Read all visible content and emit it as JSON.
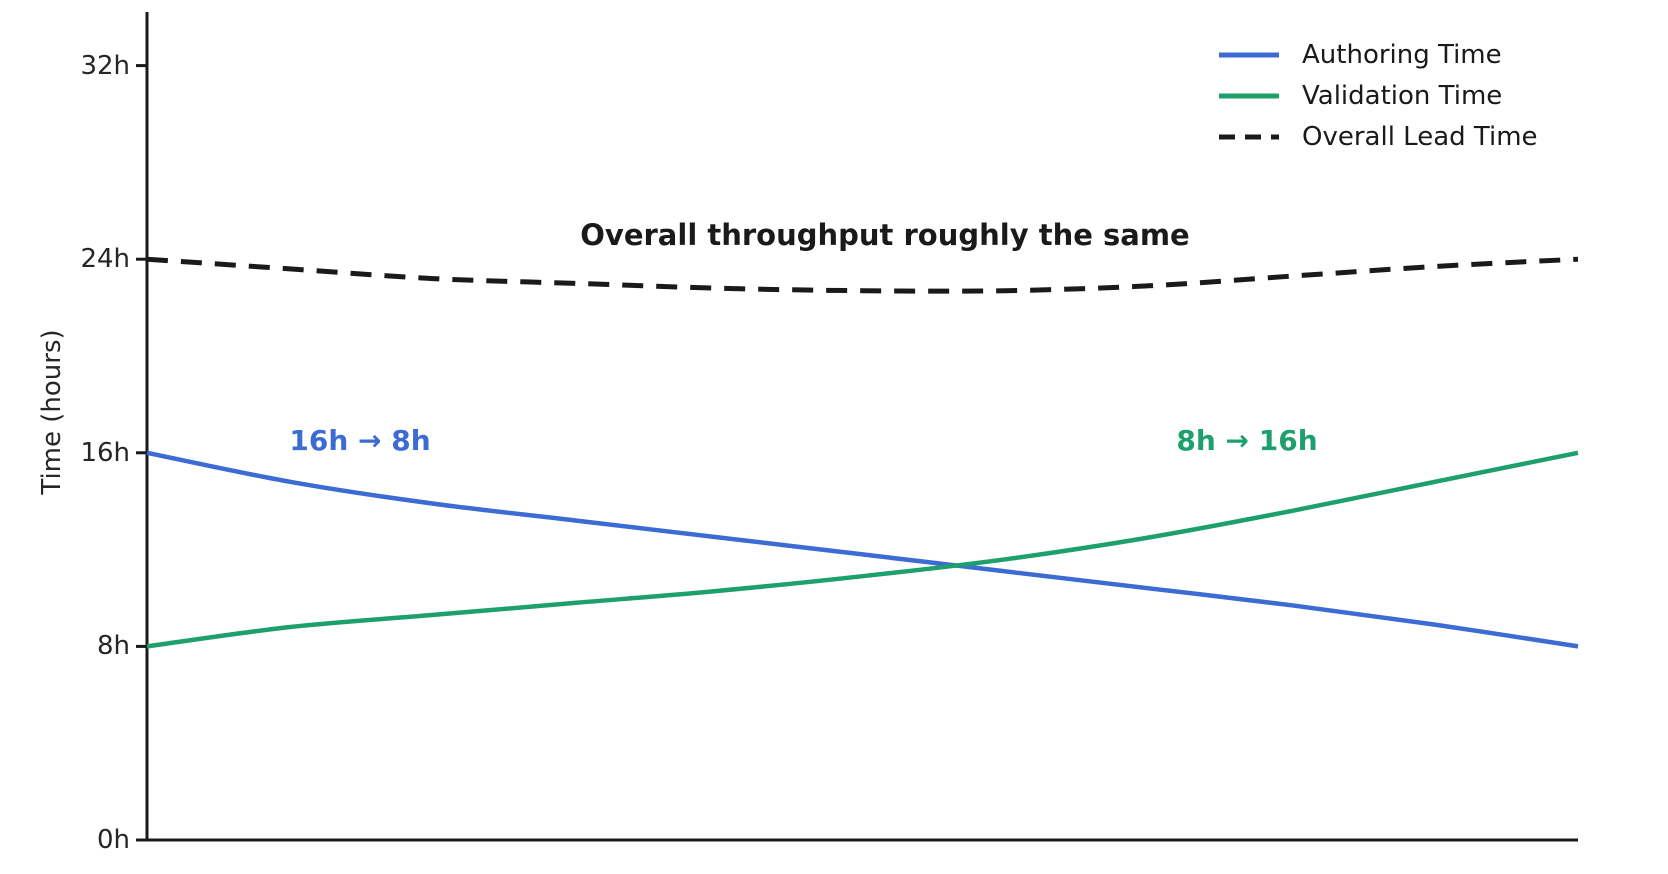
{
  "figure": {
    "background": "#ffffff",
    "axis_color": "#1a1a1a",
    "tick_label_color": "#262626",
    "ylabel": "Time (hours)"
  },
  "annotations": {
    "center": {
      "text": "Overall throughput roughly the same",
      "color": "#1a1a1a"
    },
    "authoring": {
      "text": "16h → 8h",
      "color": "#3c6bd4"
    },
    "validation": {
      "text": "8h → 16h",
      "color": "#1ea06e"
    }
  },
  "legend": {
    "position": "top-right",
    "items": [
      {
        "label": "Authoring Time",
        "color": "#3c6bd4",
        "style": "solid"
      },
      {
        "label": "Validation Time",
        "color": "#1ea06e",
        "style": "solid"
      },
      {
        "label": "Overall Lead Time",
        "color": "#1a1a1a",
        "style": "dashed"
      }
    ]
  },
  "chart_data": {
    "type": "line",
    "title": "",
    "xlabel": "",
    "ylabel": "Time (hours)",
    "x": [
      0,
      0.1,
      0.2,
      0.3,
      0.4,
      0.5,
      0.6,
      0.7,
      0.8,
      0.9,
      1.0
    ],
    "x_tick_labels": [],
    "series": [
      {
        "name": "Authoring Time",
        "color": "#3c6bd4",
        "style": "solid",
        "values": [
          16.0,
          14.8,
          13.9,
          13.2,
          12.5,
          11.8,
          11.1,
          10.4,
          9.7,
          8.9,
          8.0
        ]
      },
      {
        "name": "Validation Time",
        "color": "#1ea06e",
        "style": "solid",
        "values": [
          8.0,
          8.8,
          9.3,
          9.8,
          10.3,
          10.9,
          11.6,
          12.5,
          13.6,
          14.8,
          16.0
        ]
      },
      {
        "name": "Overall Lead Time",
        "color": "#1a1a1a",
        "style": "dashed",
        "values": [
          24.0,
          23.6,
          23.2,
          23.0,
          22.8,
          22.7,
          22.7,
          22.9,
          23.3,
          23.7,
          24.0
        ]
      }
    ],
    "ylim": [
      0,
      34
    ],
    "yticks": [
      {
        "value": 0,
        "label": "0h"
      },
      {
        "value": 8,
        "label": "8h"
      },
      {
        "value": 16,
        "label": "16h"
      },
      {
        "value": 24,
        "label": "24h"
      },
      {
        "value": 32,
        "label": "32h"
      }
    ],
    "grid": false,
    "legend_position": "top-right"
  }
}
